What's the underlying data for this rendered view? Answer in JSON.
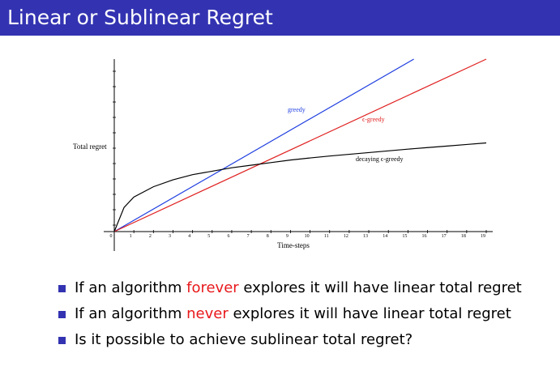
{
  "slide": {
    "title": "Linear or Sublinear Regret"
  },
  "chart_data": {
    "type": "line",
    "xlabel": "Time-steps",
    "ylabel": "Total regret",
    "x_ticks": [
      0,
      1,
      2,
      3,
      4,
      5,
      6,
      7,
      8,
      9,
      10,
      11,
      12,
      13,
      14,
      15,
      16,
      17,
      18,
      19
    ],
    "xlim": [
      0,
      19
    ],
    "ylim": [
      0,
      10
    ],
    "grid": false,
    "legend": "inline labels",
    "series": [
      {
        "name": "greedy",
        "color": "#1f3fe0",
        "x": [
          0,
          15.3
        ],
        "y": [
          0,
          10
        ]
      },
      {
        "name": "ϵ-greedy",
        "color": "#e01f1f",
        "x": [
          0,
          19
        ],
        "y": [
          0,
          10
        ]
      },
      {
        "name": "decaying ϵ-greedy",
        "color": "#000000",
        "x": [
          0,
          0.5,
          1,
          2,
          3,
          4,
          5,
          6,
          7,
          8,
          9,
          10,
          11,
          12,
          13,
          14,
          15,
          16,
          17,
          18,
          19
        ],
        "y": [
          0,
          1.4,
          2.0,
          2.6,
          3.0,
          3.3,
          3.5,
          3.7,
          3.85,
          4.0,
          4.15,
          4.27,
          4.38,
          4.48,
          4.58,
          4.68,
          4.78,
          4.87,
          4.96,
          5.05,
          5.14
        ]
      }
    ]
  },
  "bullets": [
    {
      "before": "If an algorithm ",
      "highlight": "forever",
      "after": " explores it will have linear total regret"
    },
    {
      "before": "If an algorithm ",
      "highlight": "never",
      "after": " explores it will have linear total regret"
    },
    {
      "before": "Is it possible to achieve sublinear total regret?",
      "highlight": "",
      "after": ""
    }
  ],
  "colors": {
    "title_bar": "#3333b2",
    "highlight": "#e8191b",
    "bullet": "#3333b2"
  }
}
